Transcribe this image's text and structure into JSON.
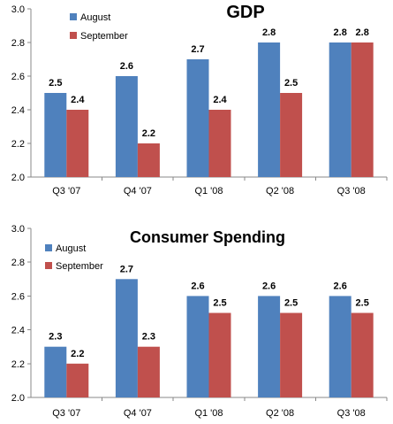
{
  "colors": {
    "august": "#4F81BD",
    "september": "#C0504D",
    "axis": "#888888",
    "background": "#FFFFFF"
  },
  "chart_data": [
    {
      "type": "bar",
      "title": "GDP",
      "categories": [
        "Q3 '07",
        "Q4 '07",
        "Q1 '08",
        "Q2 '08",
        "Q3 '08"
      ],
      "series": [
        {
          "name": "August",
          "color": "#4F81BD",
          "values": [
            2.5,
            2.6,
            2.7,
            2.8,
            2.8
          ]
        },
        {
          "name": "September",
          "color": "#C0504D",
          "values": [
            2.4,
            2.2,
            2.4,
            2.5,
            2.8
          ]
        }
      ],
      "ylim": [
        2.0,
        3.0
      ],
      "yticks": [
        "2.0",
        "2.2",
        "2.4",
        "2.6",
        "2.8",
        "3.0"
      ],
      "grid": false,
      "legend": "top-left"
    },
    {
      "type": "bar",
      "title": "Consumer Spending",
      "categories": [
        "Q3 '07",
        "Q4 '07",
        "Q1 '08",
        "Q2 '08",
        "Q3 '08"
      ],
      "series": [
        {
          "name": "August",
          "color": "#4F81BD",
          "values": [
            2.3,
            2.7,
            2.6,
            2.6,
            2.6
          ]
        },
        {
          "name": "September",
          "color": "#C0504D",
          "values": [
            2.2,
            2.3,
            2.5,
            2.5,
            2.5
          ]
        }
      ],
      "ylim": [
        2.0,
        3.0
      ],
      "yticks": [
        "2.0",
        "2.2",
        "2.4",
        "2.6",
        "2.8",
        "3.0"
      ],
      "grid": false,
      "legend": "top-left"
    }
  ]
}
